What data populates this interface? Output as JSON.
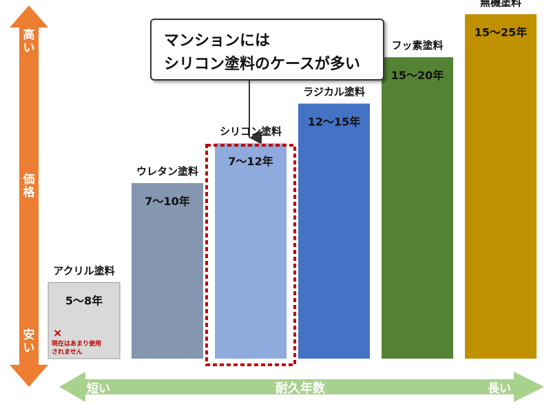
{
  "price_axis": {
    "high": "高い",
    "label": "価格",
    "low": "安い"
  },
  "duration_axis": {
    "short": "短い",
    "label": "耐久年数",
    "long": "長い"
  },
  "callout": {
    "line1": "マンションには",
    "line2": "シリコン塗料のケースが多い"
  },
  "note": {
    "mark": "×",
    "line1": "現在はあまり使用",
    "line2": "されません"
  },
  "chart_data": {
    "type": "bar",
    "categories": [
      "アクリル塗料",
      "ウレタン塗料",
      "シリコン塗料",
      "ラジカル塗料",
      "フッ素塗料",
      "無機塗料"
    ],
    "value_labels": [
      "5～8年",
      "7～10年",
      "7～12年",
      "12～15年",
      "15～20年",
      "15～25年"
    ],
    "ranges": [
      [
        5,
        8
      ],
      [
        7,
        10
      ],
      [
        7,
        12
      ],
      [
        12,
        15
      ],
      [
        15,
        20
      ],
      [
        15,
        25
      ]
    ],
    "relative_price": [
      0.05,
      0.35,
      0.47,
      0.59,
      0.73,
      0.86
    ],
    "colors": [
      "#d9d9d9",
      "#8496b0",
      "#8faadc",
      "#4472c4",
      "#548235",
      "#bf9000"
    ],
    "highlight": "シリコン塗料",
    "y_axis_color": "#ed7d31",
    "x_axis_color": "#a9d18e"
  }
}
